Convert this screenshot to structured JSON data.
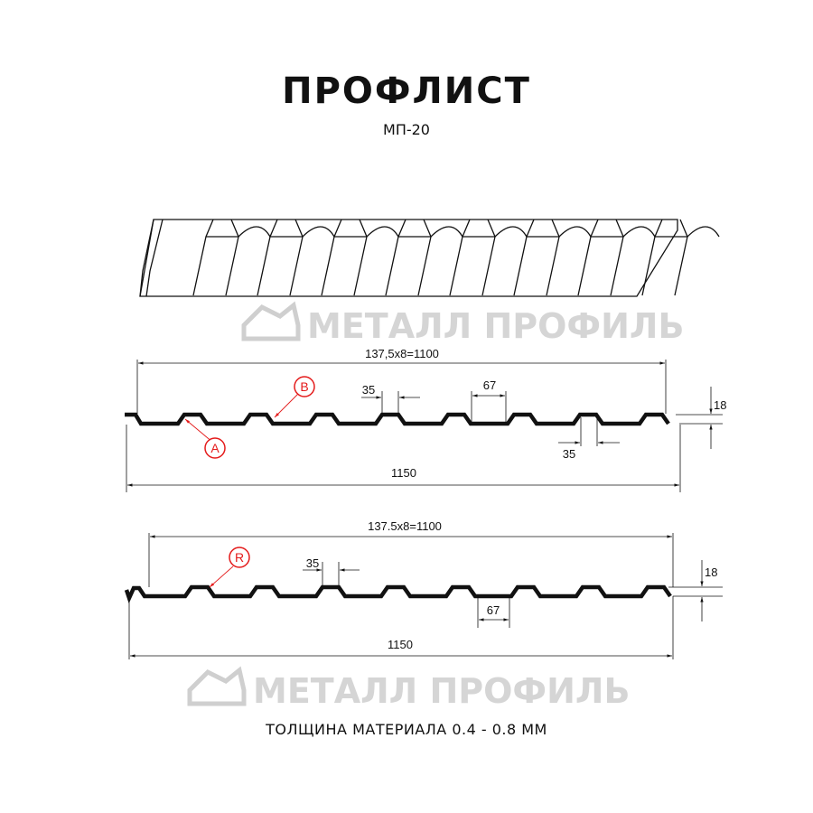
{
  "title": "ПРОФЛИСТ",
  "subtitle": "МП-20",
  "watermark": "МЕТАЛЛ ПРОФИЛЬ",
  "profile_a": {
    "working_width": "137,5x8=1100",
    "full_width": "1150",
    "crest_top": "35",
    "crest_bottom": "35",
    "valley": "67",
    "height": "18",
    "markers": [
      "A",
      "B"
    ]
  },
  "profile_r": {
    "working_width": "137.5x8=1100",
    "full_width": "1150",
    "crest_top": "35",
    "valley": "67",
    "height": "18",
    "markers": [
      "R"
    ]
  },
  "footer": "ТОЛЩИНА МАТЕРИАЛА 0.4 - 0.8 ММ",
  "colors": {
    "profile": "#111111",
    "marker": "#e41b1b",
    "watermark": "#c8c8c8"
  }
}
